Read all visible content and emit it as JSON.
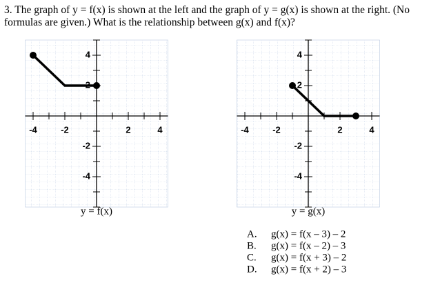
{
  "question": {
    "text": "3. The graph of y = f(x) is shown at the left and the graph of y = g(x) is shown at the right. (No formulas are given.) What is the relationship between g(x) and f(x)?"
  },
  "graphs": [
    {
      "caption": "y = f(x)",
      "xlim": [
        -4.5,
        4.5
      ],
      "ylim": [
        -6,
        5
      ],
      "xticks": [
        -4,
        -2,
        2,
        4
      ],
      "yticks": [
        -4,
        -2,
        2,
        4
      ],
      "points": [
        [
          -4,
          4
        ],
        [
          -2,
          2
        ],
        [
          0,
          2
        ]
      ]
    },
    {
      "caption": "y = g(x)",
      "xlim": [
        -4.5,
        4.5
      ],
      "ylim": [
        -6,
        5
      ],
      "xticks": [
        -4,
        -2,
        2,
        4
      ],
      "yticks": [
        -4,
        -2,
        2,
        4
      ],
      "points": [
        [
          -1,
          2
        ],
        [
          1,
          0
        ],
        [
          3,
          0
        ]
      ]
    }
  ],
  "choices": [
    {
      "letter": "A.",
      "text": "g(x) = f(x – 3) – 2"
    },
    {
      "letter": "B.",
      "text": "g(x) = f(x – 2) – 3"
    },
    {
      "letter": "C.",
      "text": "g(x) = f(x + 3) – 2"
    },
    {
      "letter": "D.",
      "text": "g(x) = f(x + 2) – 3"
    }
  ]
}
